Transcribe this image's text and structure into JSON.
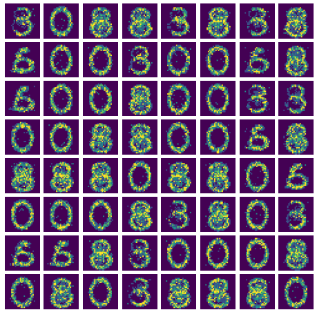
{
  "figure": {
    "rows": 8,
    "cols": 8,
    "colormap": "viridis",
    "background_color": "#ffffff",
    "pixel_colors": {
      "low": "#440154",
      "low_mid": "#3b528b",
      "mid": "#21918c",
      "high_mid": "#5ec962",
      "high": "#fde725"
    },
    "tile_patterns": [
      [
        "three",
        "zero",
        "eight",
        "eight",
        "three",
        "eight",
        "three",
        "eight"
      ],
      [
        "five",
        "zero",
        "zero",
        "three",
        "zero",
        "zero",
        "five",
        "eight"
      ],
      [
        "five",
        "zero",
        "zero",
        "eight",
        "zero",
        "zero",
        "three",
        "three"
      ],
      [
        "zero",
        "zero",
        "eight",
        "eight",
        "zero",
        "zero",
        "five",
        "eight"
      ],
      [
        "eight",
        "eight",
        "eight",
        "zero",
        "eight",
        "eight",
        "zero",
        "five"
      ],
      [
        "zero",
        "zero",
        "zero",
        "eight",
        "three",
        "eight",
        "zero",
        "three"
      ],
      [
        "five",
        "five",
        "eight",
        "three",
        "zero",
        "zero",
        "zero",
        "eight"
      ],
      [
        "zero",
        "eight",
        "zero",
        "three",
        "eight",
        "eight",
        "eight",
        "zero"
      ]
    ]
  }
}
